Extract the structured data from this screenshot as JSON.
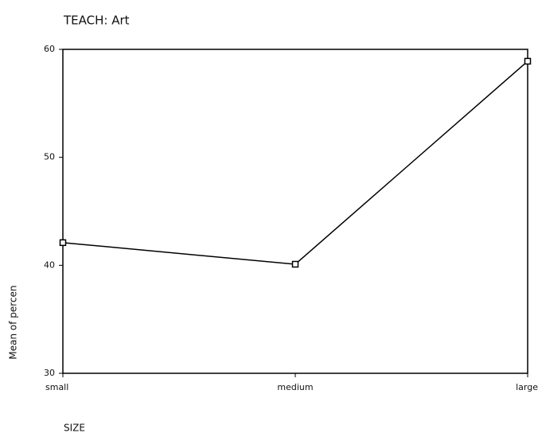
{
  "chart_data": {
    "type": "line",
    "title": "TEACH: Art",
    "categories": [
      "small",
      "medium",
      "large"
    ],
    "series": [
      {
        "name": "Mean of percen",
        "color": "#000000",
        "values": [
          42.1,
          40.1,
          58.9
        ]
      }
    ],
    "ylabel": "Mean of percen",
    "xlabel": "SIZE",
    "ylim": [
      30,
      60
    ],
    "yticks": [
      30,
      40,
      50,
      60
    ],
    "grid": false
  }
}
